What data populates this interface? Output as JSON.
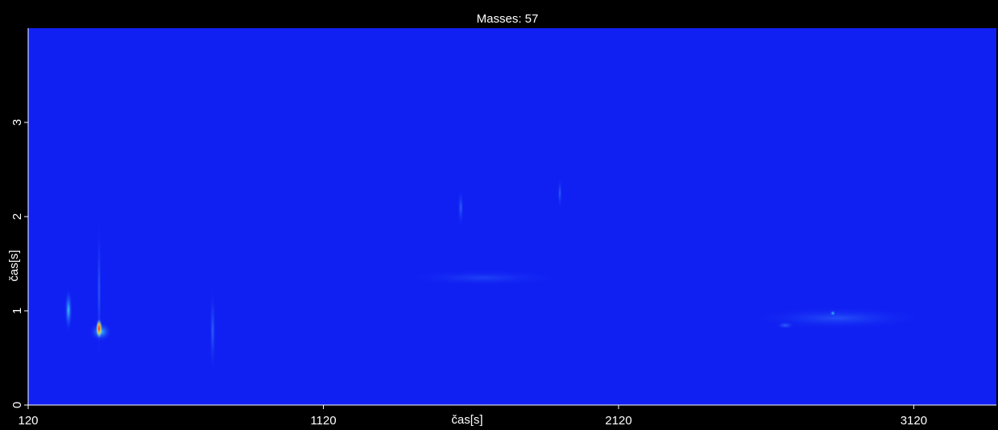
{
  "chart_data": {
    "type": "heatmap",
    "title": "Masses: 57",
    "x_label": "čas[s]",
    "y_label": "čas[s]",
    "xlim": [
      120,
      3400
    ],
    "xticks": [
      120,
      1120,
      2120,
      3120
    ],
    "ylim": [
      0,
      4
    ],
    "yticks": [
      0,
      1,
      2,
      3
    ],
    "color": "#1020f2"
  }
}
